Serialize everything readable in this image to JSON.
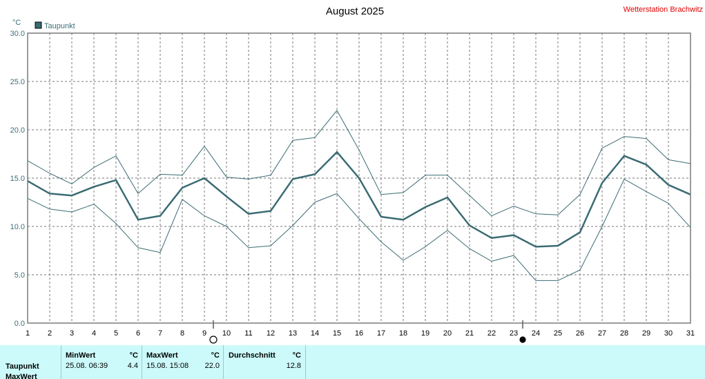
{
  "header": {
    "title": "August 2025",
    "station": "Wetterstation Brachwitz",
    "unit": "°C"
  },
  "legend": {
    "label": "Taupunkt",
    "color": "#3a6b73"
  },
  "chart_data": {
    "type": "line",
    "title": "August 2025",
    "ylabel": "°C",
    "ylim": [
      0,
      30
    ],
    "yticks": [
      "0.0",
      "5.0",
      "10.0",
      "15.0",
      "20.0",
      "25.0",
      "30.0"
    ],
    "grid": true,
    "categories": [
      "1",
      "2",
      "3",
      "4",
      "5",
      "6",
      "7",
      "8",
      "9",
      "10",
      "11",
      "12",
      "13",
      "14",
      "15",
      "16",
      "17",
      "18",
      "19",
      "20",
      "21",
      "22",
      "23",
      "24",
      "25",
      "26",
      "27",
      "28",
      "29",
      "30",
      "31"
    ],
    "series": [
      {
        "name": "Taupunkt Max",
        "values": [
          16.8,
          15.5,
          14.4,
          16.1,
          17.3,
          13.4,
          15.4,
          15.3,
          18.3,
          15.1,
          14.9,
          15.3,
          18.9,
          19.2,
          22.0,
          17.9,
          13.3,
          13.5,
          15.3,
          15.3,
          13.2,
          11.1,
          12.1,
          11.3,
          11.2,
          13.3,
          18.1,
          19.3,
          19.1,
          16.9,
          16.5
        ]
      },
      {
        "name": "Taupunkt",
        "values": [
          14.7,
          13.4,
          13.2,
          14.1,
          14.8,
          10.7,
          11.1,
          14.0,
          15.0,
          13.1,
          11.3,
          11.6,
          14.9,
          15.4,
          17.7,
          15.0,
          11.0,
          10.7,
          12.0,
          13.0,
          10.1,
          8.8,
          9.1,
          7.9,
          8.0,
          9.4,
          14.5,
          17.3,
          16.4,
          14.3,
          13.3
        ]
      },
      {
        "name": "Taupunkt Min",
        "values": [
          12.9,
          11.8,
          11.5,
          12.3,
          10.3,
          7.8,
          7.3,
          12.8,
          11.1,
          10.0,
          7.8,
          8.0,
          10.1,
          12.5,
          13.4,
          10.8,
          8.4,
          6.5,
          7.9,
          9.6,
          7.7,
          6.4,
          7.0,
          4.4,
          4.4,
          5.5,
          10.0,
          14.9,
          13.6,
          12.4,
          9.9
        ]
      }
    ]
  },
  "moon_phases": [
    {
      "day": 9,
      "phase": "full-moon"
    },
    {
      "day": 23,
      "phase": "new-moon"
    }
  ],
  "stats": {
    "row_labels": [
      "Taupunkt",
      "MaxWert"
    ],
    "min": {
      "header": "MinWert",
      "unit": "°C",
      "time": "25.08.  06:39",
      "value": "4.4"
    },
    "max": {
      "header": "MaxWert",
      "unit": "°C",
      "time": "15.08.  15:08",
      "value": "22.0"
    },
    "avg": {
      "header": "Durchschnitt",
      "unit": "°C",
      "value": "12.8"
    }
  }
}
